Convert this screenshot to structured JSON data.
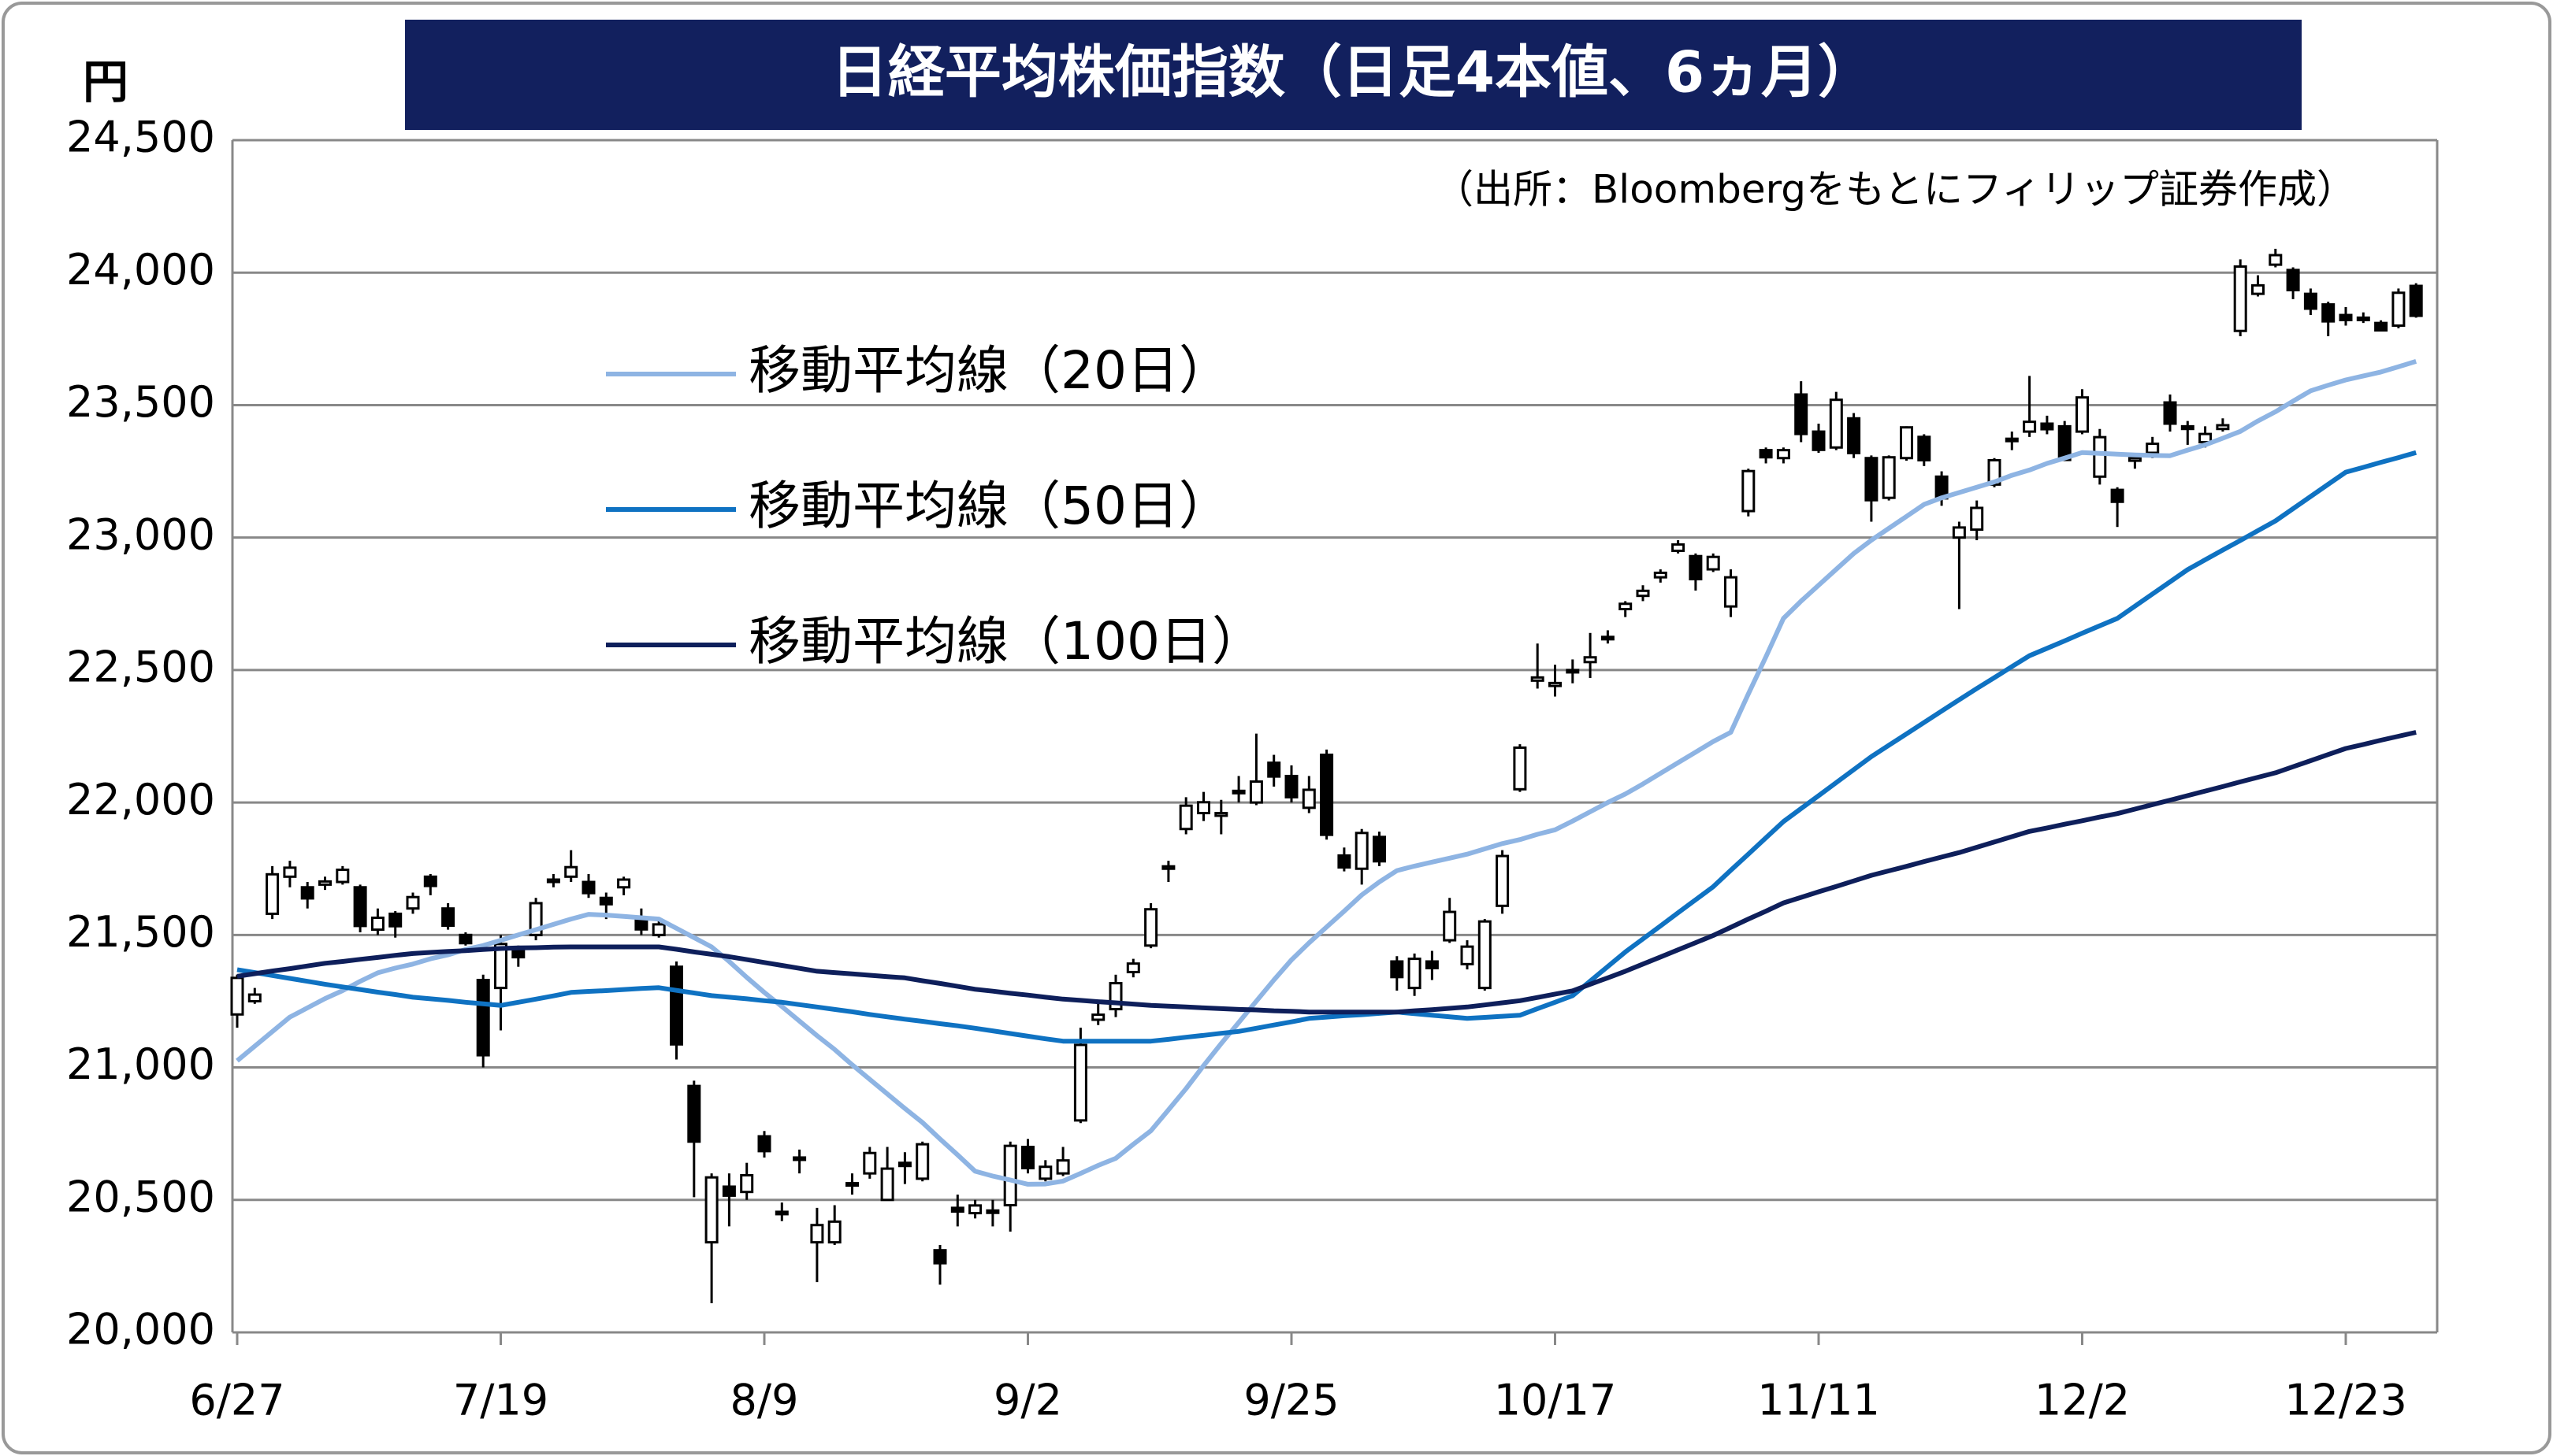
{
  "chart_data": {
    "type": "candlestick",
    "title": "日経平均株価指数（日足4本値、6ヵ月）",
    "y_unit": "円",
    "source": "（出所：Bloombergをもとにフィリップ証券作成）",
    "categories": [
      "6/27",
      null,
      null,
      null,
      null,
      null,
      null,
      null,
      null,
      null,
      null,
      null,
      null,
      null,
      null,
      "7/19",
      null,
      null,
      null,
      null,
      null,
      null,
      null,
      null,
      null,
      null,
      null,
      null,
      null,
      null,
      "8/9",
      null,
      null,
      null,
      null,
      null,
      null,
      null,
      null,
      null,
      null,
      null,
      null,
      null,
      null,
      "9/2",
      null,
      null,
      null,
      null,
      null,
      null,
      null,
      null,
      null,
      null,
      null,
      null,
      null,
      null,
      "9/25",
      null,
      null,
      null,
      null,
      null,
      null,
      null,
      null,
      null,
      null,
      null,
      null,
      null,
      null,
      "10/17",
      null,
      null,
      null,
      null,
      null,
      null,
      null,
      null,
      null,
      null,
      null,
      null,
      null,
      null,
      "11/11",
      null,
      null,
      null,
      null,
      null,
      null,
      null,
      null,
      null,
      null,
      null,
      null,
      null,
      null,
      "12/2",
      null,
      null,
      null,
      null,
      null,
      null,
      null,
      null,
      null,
      null,
      null,
      null,
      null,
      null,
      "12/23",
      null,
      null,
      null,
      null
    ],
    "open": [
      21200,
      21250,
      21580,
      21720,
      21680,
      21690,
      21700,
      21680,
      21520,
      21580,
      21600,
      21720,
      21600,
      21500,
      21330,
      21300,
      21440,
      21500,
      21700,
      21720,
      21700,
      21640,
      21680,
      21560,
      21500,
      21380,
      20930,
      20340,
      20550,
      20530,
      20740,
      20450,
      20660,
      20340,
      20340,
      20560,
      20600,
      20500,
      20640,
      20580,
      20310,
      20470,
      20450,
      20460,
      20480,
      20700,
      20580,
      20600,
      20800,
      21180,
      21220,
      21360,
      21460,
      21750,
      21900,
      21960,
      21950,
      22040,
      22000,
      22150,
      22100,
      21980,
      22180,
      21800,
      21750,
      21870,
      21400,
      21300,
      21400,
      21480,
      21390,
      21300,
      21610,
      22050,
      22460,
      22440,
      22500,
      22530,
      22620,
      22730,
      22780,
      22850,
      22950,
      22930,
      22880,
      22740,
      23100,
      23330,
      23300,
      23540,
      23400,
      23340,
      23450,
      23300,
      23150,
      23300,
      23380,
      23230,
      23000,
      23030,
      23200,
      23370,
      23400,
      23430,
      23420,
      23400,
      23230,
      23180,
      23290,
      23320,
      23510,
      23420,
      23360,
      23410,
      23780,
      23920,
      24030,
      24010,
      23920,
      23880,
      23840,
      23830,
      23810,
      23800,
      23950
    ],
    "high": [
      21350,
      21300,
      21760,
      21780,
      21700,
      21720,
      21760,
      21690,
      21600,
      21590,
      21660,
      21730,
      21620,
      21510,
      21350,
      21500,
      21460,
      21640,
      21730,
      21820,
      21730,
      21660,
      21720,
      21600,
      21560,
      21400,
      20950,
      20600,
      20600,
      20640,
      20760,
      20490,
      20690,
      20470,
      20480,
      20600,
      20700,
      20700,
      20680,
      20720,
      20330,
      20520,
      20500,
      20500,
      20720,
      20730,
      20650,
      20700,
      21150,
      21250,
      21350,
      21410,
      21620,
      21780,
      22020,
      22040,
      22010,
      22100,
      22260,
      22180,
      22140,
      22100,
      22200,
      21830,
      21900,
      21890,
      21420,
      21430,
      21440,
      21640,
      21480,
      21560,
      21820,
      22220,
      22600,
      22520,
      22540,
      22640,
      22650,
      22760,
      22820,
      22880,
      22990,
      22940,
      22940,
      22880,
      23260,
      23340,
      23340,
      23590,
      23430,
      23550,
      23470,
      23310,
      23310,
      23420,
      23390,
      23250,
      23060,
      23140,
      23300,
      23400,
      23610,
      23460,
      23440,
      23560,
      23410,
      23190,
      23320,
      23380,
      23540,
      23440,
      23420,
      23450,
      24050,
      23990,
      24090,
      24020,
      23940,
      23890,
      23870,
      23850,
      23820,
      23940,
      23960
    ],
    "low": [
      21150,
      21240,
      21560,
      21680,
      21600,
      21670,
      21690,
      21510,
      21500,
      21490,
      21580,
      21650,
      21520,
      21460,
      21000,
      21140,
      21380,
      21480,
      21680,
      21700,
      21640,
      21560,
      21650,
      21500,
      21490,
      21030,
      20510,
      20110,
      20400,
      20500,
      20660,
      20420,
      20600,
      20190,
      20330,
      20520,
      20580,
      20500,
      20560,
      20570,
      20180,
      20400,
      20430,
      20400,
      20380,
      20600,
      20570,
      20590,
      20790,
      21160,
      21190,
      21340,
      21450,
      21700,
      21880,
      21930,
      21880,
      22000,
      21990,
      22060,
      22000,
      21960,
      21860,
      21740,
      21690,
      21760,
      21290,
      21270,
      21330,
      21470,
      21370,
      21290,
      21580,
      22040,
      22430,
      22400,
      22450,
      22470,
      22600,
      22700,
      22760,
      22830,
      22940,
      22800,
      22870,
      22700,
      23080,
      23280,
      23280,
      23360,
      23320,
      23330,
      23300,
      23060,
      23140,
      23290,
      23270,
      23120,
      22730,
      22990,
      23190,
      23330,
      23380,
      23390,
      23290,
      23390,
      23200,
      23040,
      23260,
      23300,
      23400,
      23350,
      23340,
      23400,
      23760,
      23910,
      24020,
      23900,
      23840,
      23760,
      23800,
      23810,
      23780,
      23790,
      23830
    ],
    "close": [
      21338,
      21275,
      21729,
      21754,
      21638,
      21702,
      21746,
      21534,
      21565,
      21533,
      21643,
      21685,
      21535,
      21469,
      21046,
      21466,
      21416,
      21620,
      21709,
      21756,
      21658,
      21616,
      21709,
      21521,
      21540,
      21087,
      20720,
      20585,
      20516,
      20593,
      20684,
      20455,
      20655,
      20405,
      20418,
      20563,
      20677,
      20618,
      20628,
      20710,
      20261,
      20456,
      20479,
      20460,
      20704,
      20620,
      20625,
      20649,
      21085,
      21199,
      21318,
      21392,
      21597,
      21759,
      21988,
      22001,
      21960,
      22044,
      22079,
      22098,
      22020,
      22048,
      21878,
      21755,
      21885,
      21778,
      21341,
      21410,
      21375,
      21587,
      21456,
      21551,
      21798,
      22207,
      22472,
      22451,
      22492,
      22548,
      22625,
      22750,
      22799,
      22867,
      22974,
      22843,
      22927,
      22850,
      23251,
      23303,
      23330,
      23391,
      23331,
      23520,
      23319,
      23141,
      23303,
      23416,
      23292,
      23148,
      23038,
      23112,
      23292,
      23373,
      23437,
      23409,
      23293,
      23529,
      23379,
      23135,
      23300,
      23354,
      23430,
      23410,
      23391,
      23424,
      24023,
      23952,
      24066,
      23934,
      23864,
      23816,
      23821,
      23830,
      23782,
      23924,
      23837
    ],
    "series": [
      {
        "name": "移動平均線（20日）",
        "color": "#8eb4e3",
        "values": [
          21025,
          21080,
          21135,
          21190,
          21225,
          21260,
          21290,
          21325,
          21357,
          21375,
          21390,
          21410,
          21425,
          21445,
          21460,
          21480,
          21500,
          21520,
          21540,
          21560,
          21578,
          21575,
          21570,
          21565,
          21560,
          21525,
          21490,
          21455,
          21400,
          21340,
          21283,
          21230,
          21175,
          21120,
          21068,
          21010,
          20955,
          20900,
          20845,
          20792,
          20730,
          20670,
          20608,
          20590,
          20575,
          20559,
          20560,
          20571,
          20600,
          20630,
          20657,
          20710,
          20761,
          20840,
          20920,
          21007,
          21090,
          21170,
          21250,
          21330,
          21406,
          21470,
          21530,
          21590,
          21651,
          21700,
          21743,
          21760,
          21775,
          21790,
          21805,
          21825,
          21845,
          21860,
          21880,
          21897,
          21930,
          21965,
          22000,
          22032,
          22070,
          22110,
          22150,
          22190,
          22230,
          22265,
          22410,
          22550,
          22695,
          22760,
          22820,
          22880,
          22940,
          22990,
          23035,
          23080,
          23125,
          23150,
          23170,
          23190,
          23210,
          23235,
          23255,
          23280,
          23300,
          23321,
          23318,
          23315,
          23312,
          23310,
          23309,
          23330,
          23350,
          23375,
          23401,
          23440,
          23475,
          23515,
          23554,
          23575,
          23595,
          23610,
          23625,
          23645,
          23665
        ]
      },
      {
        "name": "移動平均線（50日）",
        "color": "#0f72c2",
        "values": [
          21369,
          21358,
          21347,
          21336,
          21325,
          21314,
          21304,
          21294,
          21284,
          21275,
          21265,
          21259,
          21253,
          21246,
          21240,
          21234,
          21246,
          21258,
          21270,
          21283,
          21287,
          21290,
          21294,
          21298,
          21301,
          21291,
          21281,
          21271,
          21265,
          21259,
          21252,
          21246,
          21237,
          21228,
          21219,
          21210,
          21200,
          21191,
          21182,
          21174,
          21165,
          21157,
          21148,
          21138,
          21128,
          21118,
          21108,
          21099,
          21099,
          21099,
          21099,
          21099,
          21099,
          21106,
          21114,
          21121,
          21129,
          21136,
          21148,
          21160,
          21172,
          21185,
          21190,
          21195,
          21199,
          21204,
          21209,
          21203,
          21197,
          21191,
          21185,
          21189,
          21193,
          21197,
          21222,
          21246,
          21271,
          21326,
          21381,
          21436,
          21485,
          21534,
          21584,
          21633,
          21682,
          21744,
          21805,
          21867,
          21928,
          21977,
          22026,
          22075,
          22124,
          22173,
          22216,
          22259,
          22302,
          22345,
          22388,
          22430,
          22471,
          22513,
          22554,
          22582,
          22610,
          22639,
          22667,
          22695,
          22741,
          22787,
          22833,
          22879,
          22916,
          22953,
          22989,
          23026,
          23063,
          23109,
          23155,
          23201,
          23247,
          23265,
          23284,
          23302,
          23321
        ]
      },
      {
        "name": "移動平均線（100日）",
        "color": "#0e1f5b",
        "values": [
          21344,
          21354,
          21364,
          21373,
          21383,
          21393,
          21400,
          21408,
          21415,
          21423,
          21430,
          21434,
          21438,
          21441,
          21445,
          21449,
          21451,
          21452,
          21454,
          21455,
          21455,
          21455,
          21455,
          21455,
          21455,
          21446,
          21436,
          21427,
          21418,
          21407,
          21396,
          21385,
          21374,
          21363,
          21358,
          21353,
          21348,
          21343,
          21338,
          21327,
          21317,
          21306,
          21295,
          21288,
          21280,
          21273,
          21265,
          21258,
          21253,
          21248,
          21244,
          21239,
          21234,
          21231,
          21228,
          21225,
          21222,
          21219,
          21217,
          21214,
          21212,
          21209,
          21209,
          21209,
          21209,
          21209,
          21209,
          21214,
          21218,
          21223,
          21228,
          21236,
          21244,
          21252,
          21264,
          21277,
          21289,
          21314,
          21338,
          21363,
          21390,
          21417,
          21444,
          21471,
          21498,
          21529,
          21560,
          21590,
          21621,
          21642,
          21663,
          21683,
          21704,
          21725,
          21742,
          21759,
          21777,
          21794,
          21811,
          21831,
          21851,
          21871,
          21891,
          21904,
          21918,
          21931,
          21945,
          21958,
          21975,
          21992,
          22009,
          22026,
          22043,
          22060,
          22078,
          22095,
          22112,
          22135,
          22158,
          22181,
          22204,
          22219,
          22235,
          22250,
          22265
        ]
      }
    ],
    "up_color": "#ffffff",
    "down_color": "#000000",
    "ylim": [
      20000,
      24500
    ],
    "yticks": [
      {
        "value": 20000,
        "label": "20,000"
      },
      {
        "value": 20500,
        "label": "20,500"
      },
      {
        "value": 21000,
        "label": "21,000"
      },
      {
        "value": 21500,
        "label": "21,500"
      },
      {
        "value": 22000,
        "label": "22,000"
      },
      {
        "value": 22500,
        "label": "22,500"
      },
      {
        "value": 23000,
        "label": "23,000"
      },
      {
        "value": 23500,
        "label": "23,500"
      },
      {
        "value": 24000,
        "label": "24,000"
      },
      {
        "value": 24500,
        "label": "24,500"
      }
    ],
    "grid": true
  }
}
